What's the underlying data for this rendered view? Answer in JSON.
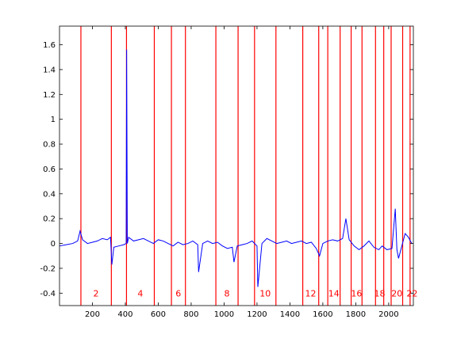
{
  "chart_data": {
    "type": "line",
    "title": "",
    "xlabel": "",
    "ylabel": "",
    "xlim": [
      0,
      2150
    ],
    "ylim": [
      -0.5,
      1.75
    ],
    "grid": false,
    "legend": "none",
    "xticks": [
      200,
      400,
      600,
      800,
      1000,
      1200,
      1400,
      1600,
      1800,
      2000
    ],
    "xtick_labels": [
      "200",
      "400",
      "600",
      "800",
      "1000",
      "1200",
      "1400",
      "1600",
      "1800",
      "2000"
    ],
    "yticks": [
      -0.4,
      -0.2,
      0,
      0.2,
      0.4,
      0.6,
      0.8,
      1.0,
      1.2,
      1.4,
      1.6
    ],
    "ytick_labels": [
      "-0.4",
      "-0.2",
      "0",
      "0.2",
      "0.4",
      "0.6",
      "0.8",
      "1",
      "1.2",
      "1.4",
      "1.6"
    ],
    "line_color": "#0000ff",
    "boundary_color": "#ff0000",
    "boundaries": [
      130,
      315,
      407,
      576,
      680,
      765,
      950,
      1085,
      1185,
      1315,
      1478,
      1575,
      1630,
      1705,
      1772,
      1838,
      1920,
      1970,
      2015,
      2085,
      2130
    ],
    "region_labels": [
      {
        "text": "2",
        "x": 222
      },
      {
        "text": "4",
        "x": 491
      },
      {
        "text": "6",
        "x": 722
      },
      {
        "text": "8",
        "x": 1017
      },
      {
        "text": "10",
        "x": 1250
      },
      {
        "text": "12",
        "x": 1526
      },
      {
        "text": "14",
        "x": 1667
      },
      {
        "text": "16",
        "x": 1805
      },
      {
        "text": "18",
        "x": 1945
      },
      {
        "text": "20",
        "x": 2050
      },
      {
        "text": "22",
        "x": 2142
      }
    ],
    "region_label_y": -0.4,
    "series": [
      {
        "x": [
          0,
          40,
          80,
          110,
          125,
          140,
          170,
          200,
          230,
          260,
          290,
          310,
          318,
          330,
          360,
          390,
          405,
          408,
          412,
          420,
          450,
          480,
          510,
          540,
          570,
          600,
          630,
          660,
          690,
          720,
          750,
          780,
          810,
          840,
          845,
          870,
          900,
          930,
          960,
          990,
          1020,
          1050,
          1060,
          1080,
          1110,
          1140,
          1170,
          1200,
          1205,
          1230,
          1260,
          1290,
          1320,
          1350,
          1380,
          1410,
          1440,
          1470,
          1500,
          1530,
          1560,
          1580,
          1600,
          1630,
          1660,
          1690,
          1720,
          1740,
          1760,
          1790,
          1820,
          1850,
          1880,
          1910,
          1940,
          1960,
          1990,
          2020,
          2040,
          2050,
          2060,
          2080,
          2100,
          2120,
          2140
        ],
        "y": [
          -0.02,
          -0.01,
          0.0,
          0.02,
          0.1,
          0.03,
          0.0,
          0.01,
          0.02,
          0.04,
          0.03,
          0.05,
          -0.17,
          -0.03,
          -0.02,
          -0.01,
          0.0,
          1.56,
          0.0,
          0.05,
          0.02,
          0.03,
          0.04,
          0.02,
          0.0,
          0.03,
          0.02,
          0.0,
          -0.02,
          0.01,
          -0.01,
          0.0,
          0.02,
          -0.01,
          -0.23,
          0.0,
          0.02,
          0.0,
          0.01,
          -0.02,
          -0.04,
          -0.03,
          -0.15,
          -0.02,
          -0.01,
          0.0,
          0.02,
          -0.02,
          -0.35,
          0.0,
          0.04,
          0.02,
          0.0,
          0.01,
          0.02,
          0.0,
          0.01,
          0.02,
          0.0,
          0.01,
          -0.04,
          -0.1,
          0.0,
          0.02,
          0.03,
          0.02,
          0.04,
          0.2,
          0.03,
          -0.02,
          -0.05,
          -0.02,
          0.02,
          -0.03,
          -0.05,
          -0.02,
          -0.05,
          -0.04,
          0.28,
          -0.05,
          -0.12,
          -0.02,
          0.08,
          0.05,
          0.0
        ]
      }
    ]
  }
}
